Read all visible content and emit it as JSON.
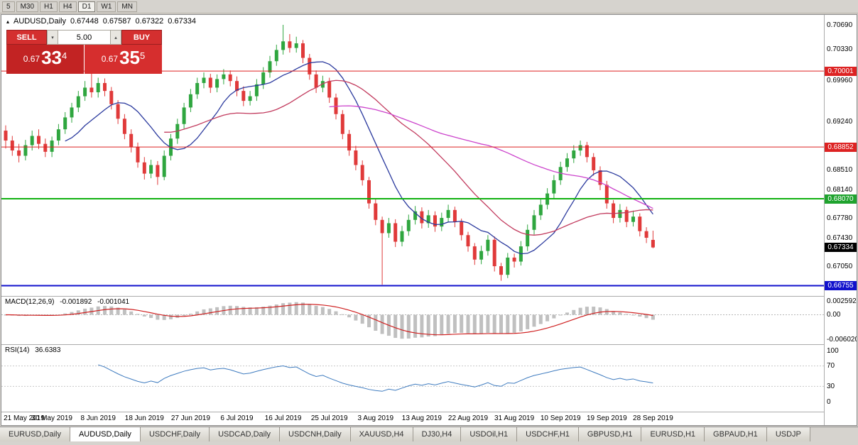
{
  "toolbar": {
    "timeframes": [
      "5",
      "M30",
      "H1",
      "H4",
      "D1",
      "W1",
      "MN"
    ],
    "active": "D1"
  },
  "icons": {
    "chart_collapse": "▴",
    "volume_decrease": "▾",
    "volume_increase": "▴"
  },
  "chart": {
    "symbol_readout": {
      "symbol": "AUDUSD,Daily",
      "open": "0.67448",
      "high": "0.67587",
      "low": "0.67322",
      "close": "0.67334"
    },
    "trade_panel": {
      "sell_label": "SELL",
      "buy_label": "BUY",
      "volume": "5.00",
      "sell_price": {
        "prefix": "0.67",
        "big": "33",
        "sup": "4"
      },
      "buy_price": {
        "prefix": "0.67",
        "big": "35",
        "sup": "5"
      }
    }
  },
  "macd": {
    "title": "MACD(12,26,9)",
    "value_main": "-0.001892",
    "value_signal": "-0.001041",
    "axis_top": "0.0025920",
    "axis_zero": "0.00",
    "axis_bottom": "-0.0060200",
    "histogram_color": "#c0c0c0",
    "signal_color": "#cf2020"
  },
  "rsi": {
    "title": "RSI(14)",
    "value": "36.6383",
    "axis": [
      "100",
      "70",
      "30",
      "0"
    ],
    "levels": [
      70,
      30
    ],
    "line_color": "#3e7bbf"
  },
  "chart_data": {
    "type": "candlestick",
    "symbol": "AUDUSD",
    "timeframe": "Daily",
    "ylim": [
      0.666,
      0.7085
    ],
    "colors": {
      "bull": "#2fa63f",
      "bear": "#e03a3a"
    },
    "price_ticks": [
      "0.70690",
      "0.70330",
      "0.69960",
      "0.69240",
      "0.68510",
      "0.68140",
      "0.67780",
      "0.67430",
      "0.67050"
    ],
    "axis_badges": [
      {
        "label": "0.70001",
        "price": 0.70001,
        "bg": "#dd2222"
      },
      {
        "label": "0.68852",
        "price": 0.68852,
        "bg": "#dd2222"
      },
      {
        "label": "0.68070",
        "price": 0.6807,
        "bg": "#1fa32e"
      },
      {
        "label": "0.67334",
        "price": 0.67334,
        "bg": "#000000"
      },
      {
        "label": "0.66755",
        "price": 0.66755,
        "bg": "#1111cc"
      }
    ],
    "levels": [
      {
        "price": 0.70001,
        "color": "#dd2222",
        "width": 1
      },
      {
        "price": 0.68852,
        "color": "#dd2222",
        "width": 1
      },
      {
        "price": 0.6807,
        "color": "#12b212",
        "width": 2
      },
      {
        "price": 0.66755,
        "color": "#1111cc",
        "width": 2
      }
    ],
    "moving_averages": [
      {
        "period": 10,
        "color": "#2b3a9e"
      },
      {
        "period": 25,
        "color": "#c23b5e"
      },
      {
        "period": 50,
        "color": "#cc44cc"
      }
    ],
    "x_ticks": [
      {
        "i": 0,
        "label": "21 May 2019"
      },
      {
        "i": 7,
        "label": "30 May 2019"
      },
      {
        "i": 14,
        "label": "8 Jun 2019"
      },
      {
        "i": 21,
        "label": "18 Jun 2019"
      },
      {
        "i": 28,
        "label": "27 Jun 2019"
      },
      {
        "i": 35,
        "label": "6 Jul 2019"
      },
      {
        "i": 42,
        "label": "16 Jul 2019"
      },
      {
        "i": 49,
        "label": "25 Jul 2019"
      },
      {
        "i": 56,
        "label": "3 Aug 2019"
      },
      {
        "i": 63,
        "label": "13 Aug 2019"
      },
      {
        "i": 70,
        "label": "22 Aug 2019"
      },
      {
        "i": 77,
        "label": "31 Aug 2019"
      },
      {
        "i": 84,
        "label": "10 Sep 2019"
      },
      {
        "i": 91,
        "label": "19 Sep 2019"
      },
      {
        "i": 98,
        "label": "28 Sep 2019"
      }
    ],
    "candles": [
      [
        0.691,
        0.6918,
        0.6883,
        0.6895
      ],
      [
        0.6895,
        0.6902,
        0.6872,
        0.688
      ],
      [
        0.688,
        0.689,
        0.6862,
        0.6872
      ],
      [
        0.6872,
        0.6896,
        0.6865,
        0.6888
      ],
      [
        0.6888,
        0.691,
        0.688,
        0.6902
      ],
      [
        0.6902,
        0.6912,
        0.6882,
        0.689
      ],
      [
        0.689,
        0.6898,
        0.687,
        0.6878
      ],
      [
        0.6878,
        0.6901,
        0.687,
        0.6895
      ],
      [
        0.6895,
        0.692,
        0.6888,
        0.6912
      ],
      [
        0.6912,
        0.6938,
        0.6905,
        0.693
      ],
      [
        0.693,
        0.6952,
        0.6922,
        0.6945
      ],
      [
        0.6945,
        0.697,
        0.6938,
        0.6962
      ],
      [
        0.6962,
        0.6985,
        0.6955,
        0.6975
      ],
      [
        0.6975,
        0.6999,
        0.696,
        0.6968
      ],
      [
        0.6968,
        0.699,
        0.696,
        0.6982
      ],
      [
        0.6982,
        0.6989,
        0.6962,
        0.697
      ],
      [
        0.697,
        0.6976,
        0.6942,
        0.695
      ],
      [
        0.695,
        0.6956,
        0.692,
        0.6928
      ],
      [
        0.6928,
        0.6935,
        0.6897,
        0.6905
      ],
      [
        0.6905,
        0.6912,
        0.6877,
        0.6885
      ],
      [
        0.6885,
        0.6892,
        0.6854,
        0.6862
      ],
      [
        0.6862,
        0.687,
        0.6836,
        0.6845
      ],
      [
        0.6845,
        0.6866,
        0.6838,
        0.6858
      ],
      [
        0.6858,
        0.6864,
        0.6828,
        0.684
      ],
      [
        0.684,
        0.688,
        0.6835,
        0.6872
      ],
      [
        0.6872,
        0.6905,
        0.6865,
        0.6898
      ],
      [
        0.6898,
        0.6928,
        0.689,
        0.692
      ],
      [
        0.692,
        0.6952,
        0.6913,
        0.6945
      ],
      [
        0.6945,
        0.6973,
        0.6938,
        0.6965
      ],
      [
        0.6965,
        0.699,
        0.6958,
        0.6982
      ],
      [
        0.6982,
        0.6998,
        0.6974,
        0.699
      ],
      [
        0.699,
        0.6996,
        0.6967,
        0.6975
      ],
      [
        0.6975,
        0.6995,
        0.6968,
        0.6988
      ],
      [
        0.6988,
        0.7003,
        0.698,
        0.6995
      ],
      [
        0.6995,
        0.7001,
        0.6977,
        0.6985
      ],
      [
        0.6985,
        0.6992,
        0.6962,
        0.697
      ],
      [
        0.697,
        0.6977,
        0.6947,
        0.6955
      ],
      [
        0.6955,
        0.697,
        0.6948,
        0.6962
      ],
      [
        0.6962,
        0.6988,
        0.6955,
        0.698
      ],
      [
        0.698,
        0.7006,
        0.6973,
        0.6998
      ],
      [
        0.6998,
        0.7023,
        0.699,
        0.7015
      ],
      [
        0.7015,
        0.704,
        0.7008,
        0.7032
      ],
      [
        0.7032,
        0.707,
        0.7025,
        0.7045
      ],
      [
        0.7045,
        0.7056,
        0.7028,
        0.7035
      ],
      [
        0.7035,
        0.7052,
        0.7028,
        0.7042
      ],
      [
        0.7042,
        0.7047,
        0.7012,
        0.702
      ],
      [
        0.702,
        0.7026,
        0.6987,
        0.6995
      ],
      [
        0.6995,
        0.7001,
        0.6967,
        0.6975
      ],
      [
        0.6975,
        0.6993,
        0.6968,
        0.6985
      ],
      [
        0.6985,
        0.699,
        0.6952,
        0.696
      ],
      [
        0.696,
        0.6966,
        0.6927,
        0.6935
      ],
      [
        0.6935,
        0.6941,
        0.6897,
        0.6905
      ],
      [
        0.6905,
        0.6911,
        0.6872,
        0.688
      ],
      [
        0.688,
        0.6887,
        0.685,
        0.6858
      ],
      [
        0.6858,
        0.6865,
        0.6827,
        0.6835
      ],
      [
        0.6835,
        0.684,
        0.6792,
        0.68
      ],
      [
        0.68,
        0.6806,
        0.6767,
        0.6775
      ],
      [
        0.6775,
        0.678,
        0.6677,
        0.6755
      ],
      [
        0.6755,
        0.6778,
        0.6748,
        0.677
      ],
      [
        0.677,
        0.6776,
        0.6734,
        0.6742
      ],
      [
        0.6742,
        0.6766,
        0.6735,
        0.6758
      ],
      [
        0.6758,
        0.6783,
        0.6751,
        0.6775
      ],
      [
        0.6775,
        0.6796,
        0.6768,
        0.6788
      ],
      [
        0.6788,
        0.6794,
        0.6762,
        0.677
      ],
      [
        0.677,
        0.679,
        0.6763,
        0.6782
      ],
      [
        0.6782,
        0.6788,
        0.6757,
        0.6765
      ],
      [
        0.6765,
        0.6786,
        0.6758,
        0.6778
      ],
      [
        0.6778,
        0.6798,
        0.6771,
        0.679
      ],
      [
        0.679,
        0.6795,
        0.6764,
        0.6772
      ],
      [
        0.6772,
        0.6777,
        0.6744,
        0.6752
      ],
      [
        0.6752,
        0.6757,
        0.6727,
        0.6735
      ],
      [
        0.6735,
        0.674,
        0.6707,
        0.6715
      ],
      [
        0.6715,
        0.6736,
        0.6708,
        0.6728
      ],
      [
        0.6728,
        0.6752,
        0.6721,
        0.6745
      ],
      [
        0.6745,
        0.675,
        0.6697,
        0.6705
      ],
      [
        0.6705,
        0.671,
        0.6683,
        0.6692
      ],
      [
        0.6692,
        0.6725,
        0.6687,
        0.6718
      ],
      [
        0.6718,
        0.6724,
        0.6703,
        0.6712
      ],
      [
        0.6712,
        0.6743,
        0.6706,
        0.6735
      ],
      [
        0.6735,
        0.6768,
        0.6728,
        0.676
      ],
      [
        0.676,
        0.679,
        0.6753,
        0.6782
      ],
      [
        0.6782,
        0.6806,
        0.6775,
        0.6798
      ],
      [
        0.6798,
        0.6823,
        0.6791,
        0.6815
      ],
      [
        0.6815,
        0.6843,
        0.6808,
        0.6835
      ],
      [
        0.6835,
        0.6863,
        0.6828,
        0.6855
      ],
      [
        0.6855,
        0.6876,
        0.6848,
        0.6868
      ],
      [
        0.6868,
        0.6888,
        0.6861,
        0.688
      ],
      [
        0.688,
        0.6895,
        0.6872,
        0.6888
      ],
      [
        0.6888,
        0.6893,
        0.6862,
        0.687
      ],
      [
        0.687,
        0.6876,
        0.6842,
        0.685
      ],
      [
        0.685,
        0.6856,
        0.682,
        0.6828
      ],
      [
        0.6828,
        0.6834,
        0.6792,
        0.68
      ],
      [
        0.68,
        0.6805,
        0.677,
        0.6778
      ],
      [
        0.6778,
        0.6799,
        0.6771,
        0.679
      ],
      [
        0.679,
        0.6795,
        0.6764,
        0.6772
      ],
      [
        0.6772,
        0.6789,
        0.6765,
        0.678
      ],
      [
        0.678,
        0.6785,
        0.675,
        0.6758
      ],
      [
        0.6758,
        0.6764,
        0.674,
        0.6748
      ],
      [
        0.67448,
        0.67587,
        0.67322,
        0.67334
      ]
    ]
  },
  "tabs": {
    "items": [
      {
        "label": "EURUSD,Daily",
        "active": false
      },
      {
        "label": "AUDUSD,Daily",
        "active": true
      },
      {
        "label": "USDCHF,Daily",
        "active": false
      },
      {
        "label": "USDCAD,Daily",
        "active": false
      },
      {
        "label": "USDCNH,Daily",
        "active": false
      },
      {
        "label": "XAUUSD,H4",
        "active": false
      },
      {
        "label": "DJ30,H4",
        "active": false
      },
      {
        "label": "USDOil,H1",
        "active": false
      },
      {
        "label": "USDCHF,H1",
        "active": false
      },
      {
        "label": "GBPUSD,H1",
        "active": false
      },
      {
        "label": "EURUSD,H1",
        "active": false
      },
      {
        "label": "GBPAUD,H1",
        "active": false
      },
      {
        "label": "USDJP",
        "active": false
      }
    ]
  }
}
